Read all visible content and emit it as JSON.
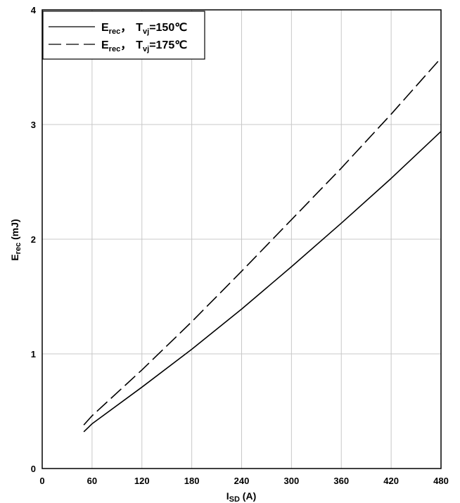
{
  "chart_data": {
    "type": "line",
    "title": "",
    "xlabel": {
      "main": "I",
      "sub": "SD",
      "unit": " (A)"
    },
    "ylabel": {
      "main": "E",
      "sub": "rec",
      "unit": " (mJ)"
    },
    "xlim": [
      0,
      480
    ],
    "ylim": [
      0,
      4
    ],
    "xticks": [
      0,
      60,
      120,
      180,
      240,
      300,
      360,
      420,
      480
    ],
    "yticks": [
      0,
      1,
      2,
      3,
      4
    ],
    "grid": true,
    "legend": {
      "placement": "top-left"
    },
    "series": [
      {
        "name": "E_rec, T_vj=150℃",
        "legend_parts": {
          "e": "E",
          "e_sub": "rec",
          "sep": "，",
          "t": "T",
          "t_sub": "vj",
          "rest": "=150℃"
        },
        "style": "solid",
        "x": [
          50,
          60,
          120,
          180,
          240,
          300,
          360,
          420,
          480
        ],
        "y": [
          0.32,
          0.39,
          0.71,
          1.04,
          1.39,
          1.76,
          2.14,
          2.53,
          2.94
        ]
      },
      {
        "name": "E_rec, T_vj=175℃",
        "legend_parts": {
          "e": "E",
          "e_sub": "rec",
          "sep": "，",
          "t": "T",
          "t_sub": "vj",
          "rest": "=175℃"
        },
        "style": "dashed",
        "x": [
          50,
          60,
          120,
          180,
          240,
          300,
          360,
          420,
          480
        ],
        "y": [
          0.38,
          0.46,
          0.86,
          1.28,
          1.72,
          2.17,
          2.62,
          3.09,
          3.58
        ]
      }
    ]
  }
}
